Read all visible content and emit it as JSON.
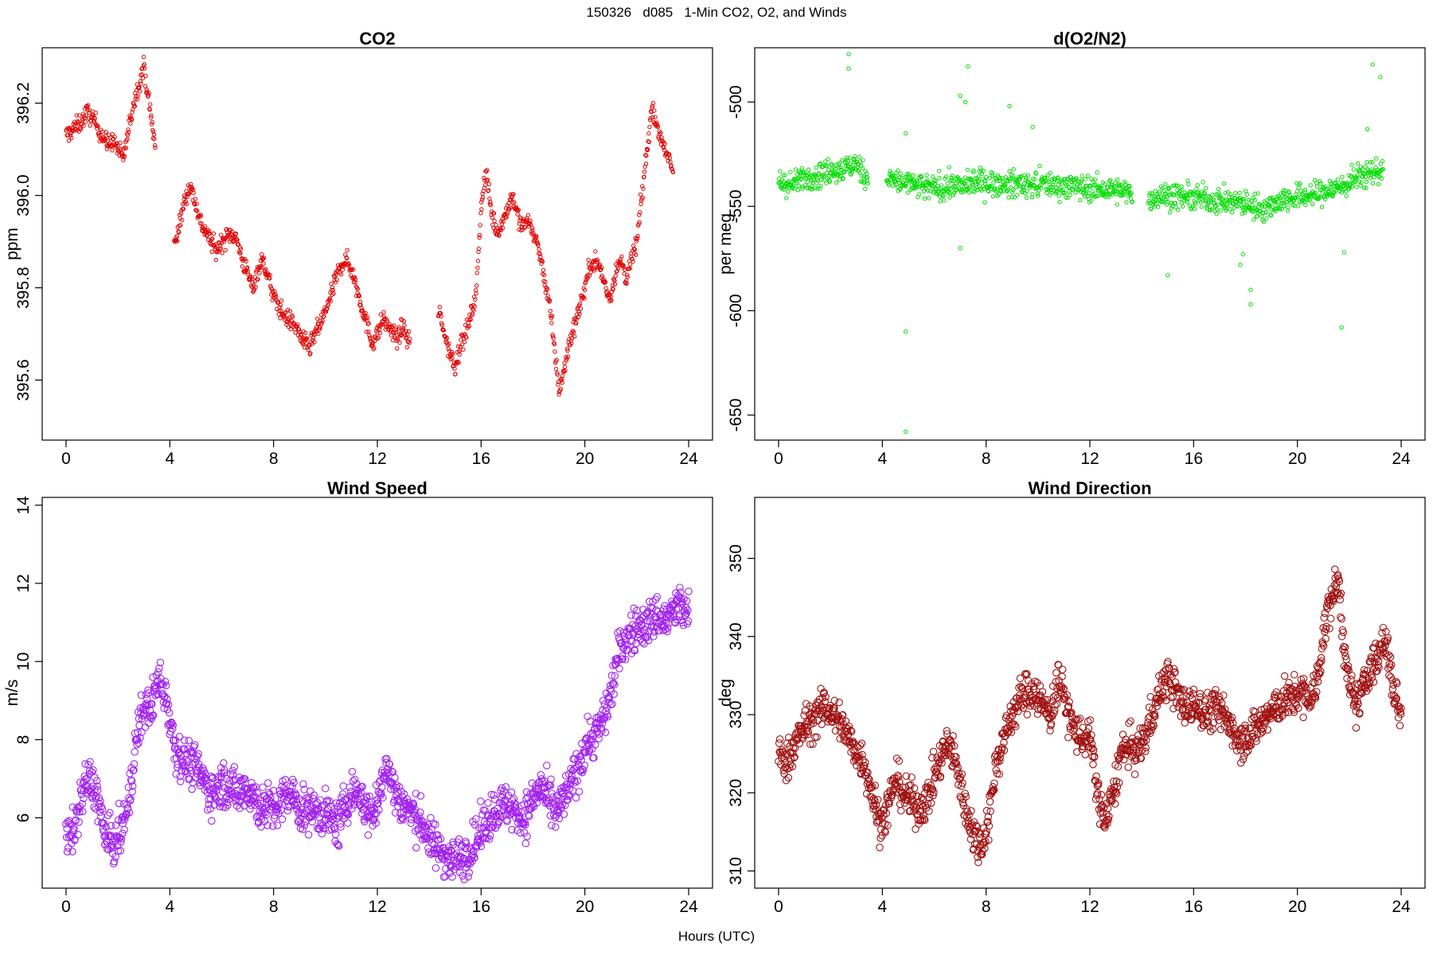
{
  "title": "150326   d085   1-Min CO2, O2, and Winds",
  "xlabel": "Hours (UTC)",
  "chart_data": [
    {
      "type": "scatter",
      "title": "CO2",
      "ylabel": "ppm",
      "color": "#e00000",
      "xlim": [
        0,
        24
      ],
      "ylim": [
        395.47,
        396.32
      ],
      "xticks": [
        0,
        4,
        8,
        12,
        16,
        20,
        24
      ],
      "yticks": [
        395.6,
        395.8,
        396.0,
        396.2
      ],
      "ytick_labels": [
        "395.6",
        "395.8",
        "396.0",
        "396.2"
      ],
      "series": [
        {
          "x": [
            0.0,
            0.2,
            0.4,
            0.6,
            0.8,
            1.0,
            1.2,
            1.4,
            1.6,
            1.8,
            2.0,
            2.2,
            2.4,
            2.6,
            2.8,
            3.0,
            3.2,
            3.4,
            4.2,
            4.4,
            4.6,
            4.8,
            5.0,
            5.2,
            5.4,
            5.6,
            5.8,
            6.0,
            6.2,
            6.4,
            6.6,
            6.8,
            7.0,
            7.2,
            7.4,
            7.6,
            7.8,
            8.0,
            8.2,
            8.4,
            8.6,
            8.8,
            9.0,
            9.2,
            9.4,
            9.6,
            9.8,
            10.0,
            10.2,
            10.4,
            10.6,
            10.8,
            11.0,
            11.2,
            11.4,
            11.6,
            11.8,
            12.0,
            12.2,
            12.4,
            12.6,
            12.8,
            13.0,
            13.2,
            14.4,
            14.6,
            14.8,
            15.0,
            15.2,
            15.4,
            15.6,
            15.8,
            16.0,
            16.2,
            16.4,
            16.6,
            16.8,
            17.0,
            17.2,
            17.4,
            17.6,
            17.8,
            18.0,
            18.2,
            18.4,
            18.6,
            18.8,
            19.0,
            19.2,
            19.4,
            19.6,
            19.8,
            20.0,
            20.2,
            20.4,
            20.6,
            20.8,
            21.0,
            21.2,
            21.4,
            21.6,
            21.8,
            22.0,
            22.2,
            22.4,
            22.6,
            22.8,
            23.0,
            23.2,
            23.4
          ],
          "y": [
            396.13,
            396.14,
            396.15,
            396.16,
            396.18,
            396.17,
            396.15,
            396.13,
            396.11,
            396.12,
            396.1,
            396.08,
            396.14,
            396.2,
            396.24,
            396.28,
            396.2,
            396.12,
            395.9,
            395.94,
            396.0,
            396.02,
            395.98,
            395.94,
            395.92,
            395.9,
            395.88,
            395.9,
            395.91,
            395.92,
            395.9,
            395.86,
            395.83,
            395.8,
            395.84,
            395.86,
            395.82,
            395.78,
            395.76,
            395.74,
            395.73,
            395.72,
            395.7,
            395.68,
            395.67,
            395.7,
            395.72,
            395.75,
            395.78,
            395.82,
            395.85,
            395.86,
            395.84,
            395.8,
            395.76,
            395.72,
            395.68,
            395.7,
            395.73,
            395.72,
            395.7,
            395.69,
            395.72,
            395.68,
            395.74,
            395.7,
            395.66,
            395.63,
            395.68,
            395.7,
            395.74,
            395.78,
            395.98,
            396.05,
            395.96,
            395.92,
            395.94,
            395.97,
            396.0,
            395.96,
            395.93,
            395.95,
            395.92,
            395.89,
            395.83,
            395.78,
            395.68,
            395.58,
            395.62,
            395.68,
            395.72,
            395.76,
            395.8,
            395.85,
            395.86,
            395.84,
            395.8,
            395.78,
            395.84,
            395.86,
            395.82,
            395.86,
            395.9,
            396.0,
            396.1,
            396.2,
            396.14,
            396.12,
            396.08,
            396.05
          ],
          "jitter": 0.02,
          "point_count": 1320
        }
      ]
    },
    {
      "type": "scatter",
      "title": "d(O2/N2)",
      "ylabel": "per meg",
      "color": "#00dd00",
      "xlim": [
        0,
        24
      ],
      "ylim": [
        -662,
        -474
      ],
      "xticks": [
        0,
        4,
        8,
        12,
        16,
        20,
        24
      ],
      "yticks": [
        -650,
        -600,
        -550,
        -500
      ],
      "ytick_labels": [
        "-650",
        "-600",
        "-550",
        "-500"
      ],
      "series": [
        {
          "x": [
            0.0,
            0.5,
            1.0,
            1.5,
            2.0,
            2.5,
            3.0,
            3.4,
            4.2,
            4.7,
            5.2,
            5.7,
            6.2,
            6.7,
            7.2,
            7.7,
            8.2,
            8.7,
            9.2,
            9.7,
            10.2,
            10.7,
            11.2,
            11.7,
            12.2,
            12.7,
            13.2,
            13.6,
            14.3,
            14.8,
            15.3,
            15.8,
            16.3,
            16.8,
            17.3,
            17.8,
            18.3,
            18.8,
            19.3,
            19.8,
            20.3,
            20.8,
            21.3,
            21.8,
            22.3,
            22.8,
            23.3
          ],
          "y": [
            -538,
            -540,
            -536,
            -535,
            -533,
            -532,
            -530,
            -536,
            -537,
            -538,
            -540,
            -541,
            -541,
            -540,
            -540,
            -538,
            -539,
            -540,
            -539,
            -540,
            -539,
            -540,
            -540,
            -541,
            -542,
            -542,
            -543,
            -544,
            -546,
            -545,
            -545,
            -546,
            -546,
            -547,
            -548,
            -548,
            -550,
            -551,
            -547,
            -546,
            -545,
            -544,
            -542,
            -540,
            -536,
            -534,
            -532
          ],
          "jitter": 6,
          "outliers": [
            [
              2.7,
              -477
            ],
            [
              2.7,
              -484
            ],
            [
              4.9,
              -610
            ],
            [
              4.9,
              -658
            ],
            [
              4.9,
              -515
            ],
            [
              7.0,
              -497
            ],
            [
              7.3,
              -483
            ],
            [
              7.2,
              -500
            ],
            [
              7.0,
              -570
            ],
            [
              8.9,
              -502
            ],
            [
              9.8,
              -512
            ],
            [
              15.0,
              -583
            ],
            [
              17.8,
              -578
            ],
            [
              17.9,
              -573
            ],
            [
              18.2,
              -590
            ],
            [
              18.2,
              -597
            ],
            [
              21.7,
              -608
            ],
            [
              21.8,
              -572
            ],
            [
              22.9,
              -482
            ],
            [
              23.2,
              -488
            ],
            [
              22.7,
              -513
            ]
          ],
          "point_count": 1320
        }
      ]
    },
    {
      "type": "scatter",
      "title": "Wind Speed",
      "ylabel": "m/s",
      "color": "#a020f0",
      "xlim": [
        0,
        24
      ],
      "ylim": [
        4.2,
        14.2
      ],
      "xticks": [
        0,
        4,
        8,
        12,
        16,
        20,
        24
      ],
      "yticks": [
        6,
        8,
        10,
        12,
        14
      ],
      "ytick_labels": [
        "6",
        "8",
        "10",
        "12",
        "14"
      ],
      "series": [
        {
          "x": [
            0.0,
            0.3,
            0.6,
            0.9,
            1.2,
            1.5,
            1.8,
            2.1,
            2.4,
            2.7,
            3.0,
            3.3,
            3.6,
            3.9,
            4.2,
            4.5,
            4.8,
            5.1,
            5.4,
            5.7,
            6.0,
            6.3,
            6.6,
            6.9,
            7.2,
            7.5,
            7.8,
            8.1,
            8.4,
            8.7,
            9.0,
            9.3,
            9.6,
            9.9,
            10.2,
            10.5,
            10.8,
            11.1,
            11.4,
            11.7,
            12.0,
            12.3,
            12.6,
            12.9,
            13.2,
            13.5,
            13.8,
            14.1,
            14.4,
            14.7,
            15.0,
            15.3,
            15.6,
            15.9,
            16.2,
            16.5,
            16.8,
            17.1,
            17.4,
            17.7,
            18.0,
            18.3,
            18.6,
            18.9,
            19.2,
            19.5,
            19.8,
            20.1,
            20.4,
            20.7,
            21.0,
            21.3,
            21.6,
            21.9,
            22.2,
            22.5,
            22.8,
            23.1,
            23.4,
            23.7,
            24.0
          ],
          "y": [
            5.5,
            5.6,
            6.6,
            7.0,
            6.6,
            5.5,
            5.3,
            5.6,
            6.3,
            8.0,
            8.8,
            8.9,
            9.6,
            9.0,
            7.8,
            7.5,
            7.4,
            7.2,
            6.8,
            6.6,
            6.9,
            6.8,
            6.6,
            6.8,
            6.6,
            6.2,
            6.3,
            6.2,
            6.5,
            6.6,
            6.2,
            6.2,
            6.2,
            6.1,
            6.0,
            5.8,
            6.4,
            6.7,
            6.5,
            6.0,
            6.3,
            7.4,
            6.8,
            6.4,
            6.2,
            6.0,
            5.8,
            5.3,
            5.2,
            5.0,
            4.9,
            5.0,
            5.2,
            5.5,
            5.9,
            6.2,
            6.3,
            6.3,
            6.1,
            6.0,
            6.5,
            6.8,
            6.4,
            6.1,
            6.5,
            6.9,
            7.4,
            8.0,
            8.1,
            8.5,
            9.2,
            10.2,
            10.6,
            10.8,
            10.9,
            11.0,
            11.2,
            11.0,
            11.3,
            11.4,
            11.2
          ],
          "jitter": 0.55,
          "point_count": 1400
        }
      ]
    },
    {
      "type": "scatter",
      "title": "Wind Direction",
      "ylabel": "deg",
      "color": "#a01010",
      "xlim": [
        0,
        24
      ],
      "ylim": [
        307.8,
        357.8
      ],
      "xticks": [
        0,
        4,
        8,
        12,
        16,
        20,
        24
      ],
      "yticks": [
        310,
        320,
        330,
        340,
        350
      ],
      "ytick_labels": [
        "310",
        "320",
        "330",
        "340",
        "350"
      ],
      "series": [
        {
          "x": [
            0.0,
            0.3,
            0.6,
            0.9,
            1.2,
            1.5,
            1.8,
            2.1,
            2.4,
            2.7,
            3.0,
            3.3,
            3.6,
            3.9,
            4.2,
            4.5,
            4.8,
            5.1,
            5.4,
            5.7,
            6.0,
            6.3,
            6.6,
            6.9,
            7.2,
            7.5,
            7.8,
            8.1,
            8.4,
            8.7,
            9.0,
            9.3,
            9.6,
            9.9,
            10.2,
            10.5,
            10.8,
            11.1,
            11.4,
            11.7,
            12.0,
            12.3,
            12.6,
            12.9,
            13.2,
            13.5,
            13.8,
            14.1,
            14.4,
            14.7,
            15.0,
            15.3,
            15.6,
            15.9,
            16.2,
            16.5,
            16.8,
            17.1,
            17.4,
            17.7,
            18.0,
            18.3,
            18.6,
            18.9,
            19.2,
            19.5,
            19.8,
            20.1,
            20.4,
            20.7,
            21.0,
            21.3,
            21.6,
            21.9,
            22.2,
            22.5,
            22.8,
            23.1,
            23.4,
            23.7,
            24.0
          ],
          "y": [
            325,
            324,
            326,
            328,
            329,
            330,
            331,
            330,
            329,
            327,
            325,
            324,
            320,
            316,
            318,
            322,
            320,
            319,
            318,
            319,
            322,
            325,
            326,
            323,
            318,
            315,
            313,
            317,
            324,
            327,
            330,
            332,
            333,
            333,
            331,
            330,
            335,
            331,
            328,
            327,
            327,
            320,
            316,
            320,
            325,
            326,
            325,
            327,
            330,
            333,
            335,
            333,
            331,
            331,
            331,
            330,
            331,
            330,
            329,
            327,
            327,
            328,
            329,
            330,
            331,
            332,
            332,
            333,
            332,
            333,
            340,
            345,
            347,
            335,
            331,
            333,
            336,
            337,
            340,
            333,
            330
          ],
          "jitter": 2.5,
          "point_count": 1400
        }
      ]
    }
  ]
}
